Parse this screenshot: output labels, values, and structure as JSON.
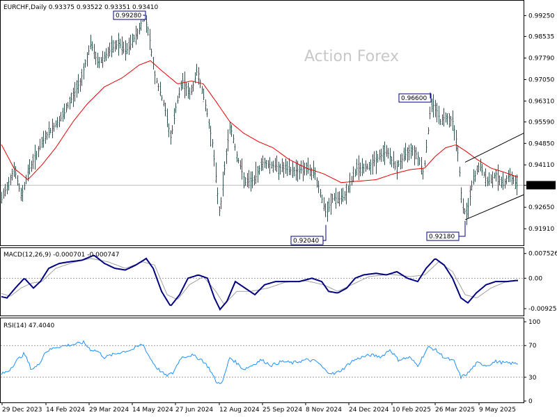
{
  "chart_data": [
    {
      "type": "bar",
      "panel": "price",
      "header": "EURCHF,Daily  0.93375 0.93522 0.93351 0.93410",
      "watermark": "Action Forex",
      "ylim": [
        0.9141,
        0.9955
      ],
      "y_ticks": [
        "0.99250",
        "0.98535",
        "0.97790",
        "0.97050",
        "0.96310",
        "0.95590",
        "0.94850",
        "0.94110",
        "0.93410",
        "0.92650",
        "0.91910"
      ],
      "y_tick_values": [
        0.9925,
        0.98535,
        0.9779,
        0.9705,
        0.9631,
        0.9559,
        0.9485,
        0.9411,
        0.9341,
        0.9265,
        0.9191
      ],
      "current_price": "0.93410",
      "current_value": 0.9341,
      "ma_color": "#e60000",
      "bar_color": "#2f4f4f",
      "annotations": [
        {
          "label": "0.99280",
          "x": "14 May 2024",
          "y": 0.9928
        },
        {
          "label": "0.92040",
          "x": "8 Nov 2024",
          "y": 0.9204
        },
        {
          "label": "0.96600",
          "x": "10 Feb 2025",
          "y": 0.966
        },
        {
          "label": "0.92180",
          "x": "26 Mar 2025",
          "y": 0.9218
        }
      ],
      "channel_upper": [
        [
          0.942,
          0.952
        ]
      ],
      "channel_lower": [
        [
          0.9222,
          0.9308
        ]
      ],
      "key_path": [
        [
          0,
          0.928
        ],
        [
          20,
          0.94
        ],
        [
          30,
          0.93
        ],
        [
          40,
          0.939
        ],
        [
          65,
          0.951
        ],
        [
          90,
          0.958
        ],
        [
          115,
          0.97
        ],
        [
          130,
          0.983
        ],
        [
          140,
          0.976
        ],
        [
          155,
          0.98
        ],
        [
          170,
          0.983
        ],
        [
          180,
          0.98
        ],
        [
          198,
          0.987
        ],
        [
          206,
          0.9928
        ],
        [
          212,
          0.988
        ],
        [
          222,
          0.972
        ],
        [
          236,
          0.961
        ],
        [
          245,
          0.95
        ],
        [
          252,
          0.961
        ],
        [
          262,
          0.97
        ],
        [
          273,
          0.965
        ],
        [
          283,
          0.974
        ],
        [
          296,
          0.96
        ],
        [
          305,
          0.948
        ],
        [
          315,
          0.924
        ],
        [
          323,
          0.942
        ],
        [
          330,
          0.955
        ],
        [
          340,
          0.944
        ],
        [
          352,
          0.935
        ],
        [
          365,
          0.936
        ],
        [
          376,
          0.942
        ],
        [
          390,
          0.941
        ],
        [
          405,
          0.94
        ],
        [
          420,
          0.939
        ],
        [
          438,
          0.94
        ],
        [
          452,
          0.938
        ],
        [
          460,
          0.931
        ],
        [
          468,
          0.924
        ],
        [
          478,
          0.93
        ],
        [
          490,
          0.929
        ],
        [
          500,
          0.933
        ],
        [
          512,
          0.94
        ],
        [
          525,
          0.94
        ],
        [
          540,
          0.943
        ],
        [
          555,
          0.946
        ],
        [
          568,
          0.94
        ],
        [
          580,
          0.944
        ],
        [
          590,
          0.947
        ],
        [
          600,
          0.944
        ],
        [
          608,
          0.938
        ],
        [
          618,
          0.961
        ],
        [
          624,
          0.962
        ],
        [
          632,
          0.956
        ],
        [
          640,
          0.958
        ],
        [
          650,
          0.956
        ],
        [
          656,
          0.948
        ],
        [
          664,
          0.926
        ],
        [
          670,
          0.924
        ],
        [
          678,
          0.935
        ],
        [
          688,
          0.941
        ],
        [
          700,
          0.935
        ],
        [
          712,
          0.938
        ],
        [
          722,
          0.934
        ],
        [
          730,
          0.938
        ],
        [
          742,
          0.9341
        ]
      ],
      "ma_path": [
        [
          0,
          0.949
        ],
        [
          20,
          0.94
        ],
        [
          40,
          0.936
        ],
        [
          60,
          0.941
        ],
        [
          80,
          0.947
        ],
        [
          105,
          0.956
        ],
        [
          125,
          0.962
        ],
        [
          150,
          0.968
        ],
        [
          175,
          0.971
        ],
        [
          200,
          0.9755
        ],
        [
          216,
          0.977
        ],
        [
          230,
          0.974
        ],
        [
          255,
          0.969
        ],
        [
          275,
          0.97
        ],
        [
          292,
          0.969
        ],
        [
          310,
          0.963
        ],
        [
          330,
          0.956
        ],
        [
          350,
          0.952
        ],
        [
          372,
          0.949
        ],
        [
          392,
          0.947
        ],
        [
          415,
          0.943
        ],
        [
          440,
          0.94
        ],
        [
          465,
          0.938
        ],
        [
          490,
          0.935
        ],
        [
          515,
          0.9355
        ],
        [
          540,
          0.936
        ],
        [
          565,
          0.938
        ],
        [
          590,
          0.9395
        ],
        [
          610,
          0.94
        ],
        [
          625,
          0.944
        ],
        [
          640,
          0.947
        ],
        [
          655,
          0.948
        ],
        [
          668,
          0.946
        ],
        [
          685,
          0.943
        ],
        [
          705,
          0.94
        ],
        [
          725,
          0.9385
        ],
        [
          742,
          0.937
        ]
      ]
    },
    {
      "type": "line",
      "panel": "macd",
      "header": "MACD(12,26,9) -0.000701 -0.000747",
      "ylim": [
        -0.0105,
        0.0081
      ],
      "y_ticks": [
        "0.007526",
        "0.00",
        "-0.009252"
      ],
      "y_tick_values": [
        0.007526,
        0.0,
        -0.009252
      ],
      "line_color": "#000080",
      "signal_color": "#a0a0a0",
      "key_path": [
        [
          0,
          -0.0055
        ],
        [
          10,
          -0.006
        ],
        [
          22,
          -0.003
        ],
        [
          35,
          0.0
        ],
        [
          48,
          -0.003
        ],
        [
          58,
          -0.001
        ],
        [
          70,
          0.003
        ],
        [
          85,
          0.0045
        ],
        [
          100,
          0.005
        ],
        [
          118,
          0.0055
        ],
        [
          135,
          0.007
        ],
        [
          150,
          0.0045
        ],
        [
          165,
          0.003
        ],
        [
          180,
          0.0025
        ],
        [
          195,
          0.004
        ],
        [
          210,
          0.006
        ],
        [
          220,
          0.003
        ],
        [
          232,
          -0.004
        ],
        [
          245,
          -0.0085
        ],
        [
          258,
          -0.005
        ],
        [
          270,
          0.0
        ],
        [
          285,
          0.001
        ],
        [
          298,
          0.0
        ],
        [
          308,
          -0.006
        ],
        [
          316,
          -0.0095
        ],
        [
          326,
          -0.007
        ],
        [
          338,
          -0.001
        ],
        [
          352,
          -0.003
        ],
        [
          366,
          -0.005
        ],
        [
          380,
          -0.002
        ],
        [
          396,
          -0.001
        ],
        [
          412,
          -0.001
        ],
        [
          430,
          -0.001
        ],
        [
          448,
          0.0
        ],
        [
          462,
          -0.001
        ],
        [
          472,
          -0.004
        ],
        [
          485,
          -0.0045
        ],
        [
          498,
          -0.003
        ],
        [
          510,
          0.0
        ],
        [
          522,
          0.001
        ],
        [
          540,
          0.0015
        ],
        [
          555,
          0.001
        ],
        [
          570,
          0.002
        ],
        [
          585,
          0.0
        ],
        [
          600,
          -0.001
        ],
        [
          612,
          0.003
        ],
        [
          625,
          0.006
        ],
        [
          638,
          0.004
        ],
        [
          650,
          0.0
        ],
        [
          662,
          -0.006
        ],
        [
          672,
          -0.0075
        ],
        [
          684,
          -0.0045
        ],
        [
          698,
          -0.002
        ],
        [
          712,
          -0.001
        ],
        [
          728,
          -0.001
        ],
        [
          742,
          -0.0007
        ]
      ],
      "signal_path": [
        [
          0,
          -0.0045
        ],
        [
          15,
          -0.0055
        ],
        [
          30,
          -0.003
        ],
        [
          45,
          -0.0015
        ],
        [
          60,
          -0.001
        ],
        [
          80,
          0.003
        ],
        [
          105,
          0.0048
        ],
        [
          130,
          0.006
        ],
        [
          155,
          0.005
        ],
        [
          180,
          0.003
        ],
        [
          205,
          0.005
        ],
        [
          222,
          0.004
        ],
        [
          240,
          -0.005
        ],
        [
          255,
          -0.0065
        ],
        [
          272,
          -0.002
        ],
        [
          292,
          0.0005
        ],
        [
          310,
          -0.004
        ],
        [
          322,
          -0.008
        ],
        [
          340,
          -0.004
        ],
        [
          360,
          -0.004
        ],
        [
          385,
          -0.003
        ],
        [
          410,
          -0.0012
        ],
        [
          440,
          -0.0008
        ],
        [
          465,
          -0.002
        ],
        [
          485,
          -0.004
        ],
        [
          505,
          -0.002
        ],
        [
          530,
          0.0005
        ],
        [
          560,
          0.0012
        ],
        [
          590,
          0.0005
        ],
        [
          610,
          0.001
        ],
        [
          630,
          0.005
        ],
        [
          650,
          0.002
        ],
        [
          668,
          -0.005
        ],
        [
          685,
          -0.006
        ],
        [
          705,
          -0.003
        ],
        [
          725,
          -0.0012
        ],
        [
          742,
          -0.0007
        ]
      ]
    },
    {
      "type": "line",
      "panel": "rsi",
      "header": "RSI(14) 47.4040",
      "ylim": [
        0,
        100
      ],
      "y_ticks": [
        "100",
        "70",
        "30",
        "0"
      ],
      "y_tick_values": [
        100,
        70,
        30,
        0
      ],
      "line_color": "#1e90ff",
      "key_path": [
        [
          0,
          33
        ],
        [
          12,
          38
        ],
        [
          25,
          52
        ],
        [
          35,
          60
        ],
        [
          45,
          40
        ],
        [
          55,
          45
        ],
        [
          65,
          62
        ],
        [
          80,
          68
        ],
        [
          95,
          70
        ],
        [
          110,
          72
        ],
        [
          120,
          74
        ],
        [
          130,
          65
        ],
        [
          140,
          63
        ],
        [
          150,
          55
        ],
        [
          160,
          58
        ],
        [
          175,
          62
        ],
        [
          190,
          65
        ],
        [
          205,
          72
        ],
        [
          215,
          55
        ],
        [
          225,
          42
        ],
        [
          238,
          32
        ],
        [
          248,
          35
        ],
        [
          260,
          55
        ],
        [
          275,
          58
        ],
        [
          290,
          52
        ],
        [
          300,
          42
        ],
        [
          312,
          22
        ],
        [
          320,
          25
        ],
        [
          330,
          55
        ],
        [
          340,
          48
        ],
        [
          350,
          40
        ],
        [
          362,
          45
        ],
        [
          375,
          52
        ],
        [
          390,
          45
        ],
        [
          405,
          50
        ],
        [
          420,
          48
        ],
        [
          440,
          52
        ],
        [
          455,
          50
        ],
        [
          468,
          38
        ],
        [
          480,
          34
        ],
        [
          492,
          40
        ],
        [
          505,
          50
        ],
        [
          518,
          55
        ],
        [
          532,
          58
        ],
        [
          548,
          56
        ],
        [
          560,
          65
        ],
        [
          572,
          52
        ],
        [
          588,
          55
        ],
        [
          600,
          45
        ],
        [
          615,
          68
        ],
        [
          625,
          65
        ],
        [
          638,
          55
        ],
        [
          652,
          50
        ],
        [
          662,
          30
        ],
        [
          672,
          35
        ],
        [
          685,
          48
        ],
        [
          700,
          45
        ],
        [
          712,
          50
        ],
        [
          725,
          48
        ],
        [
          742,
          47.4
        ]
      ]
    }
  ],
  "x_axis": {
    "ticks": [
      "29 Dec 2023",
      "14 Feb 2024",
      "29 Mar 2024",
      "14 May 2024",
      "27 Jun 2024",
      "12 Aug 2024",
      "25 Sep 2024",
      "8 Nov 2024",
      "24 Dec 2024",
      "10 Feb 2025",
      "26 Mar 2025",
      "9 May 2025"
    ],
    "tick_values": [
      3,
      66,
      128,
      190,
      252,
      315,
      377,
      439,
      501,
      563,
      625,
      688
    ]
  }
}
